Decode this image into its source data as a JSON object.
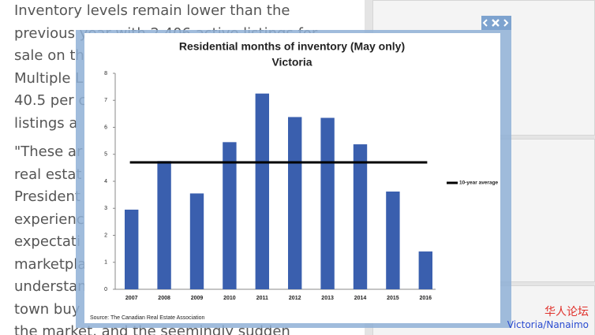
{
  "article": {
    "lines": [
      "Inventory levels remain lower than the",
      "previous year with 2,406 active listings for",
      "sale on th",
      "Multiple L",
      "40.5 per c",
      "listings a",
      "\"These ar",
      "real estat",
      "President",
      "experienc",
      "expectati",
      "marketpla",
      "understan",
      "town buy",
      "the market, and the seemingly sudden"
    ]
  },
  "watermark": [
    "华人论坛",
    "Victoria/Nanaimo"
  ],
  "chart_data": {
    "type": "bar",
    "title": "Residential months of inventory (May only)",
    "subtitle": "Victoria",
    "source": "Source: The Canadian Real Estate Association",
    "categories": [
      "2007",
      "2008",
      "2009",
      "2010",
      "2011",
      "2012",
      "2013",
      "2014",
      "2015",
      "2016"
    ],
    "values": [
      2.95,
      4.75,
      3.55,
      5.45,
      7.25,
      6.38,
      6.35,
      5.37,
      3.62,
      1.4
    ],
    "color": "#3a5fae",
    "average": 4.7,
    "average_label": "10-year average",
    "ylim": [
      0,
      8
    ],
    "yticks": [
      0,
      1,
      2,
      3,
      4,
      5,
      6,
      7,
      8
    ]
  }
}
